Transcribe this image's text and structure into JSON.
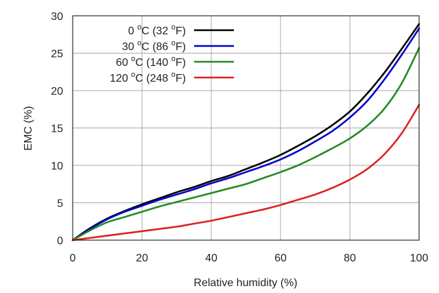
{
  "chart_data": {
    "type": "line",
    "title": "",
    "xlabel": "Relative humidity (%)",
    "ylabel": "EMC (%)",
    "xlim": [
      0,
      100
    ],
    "ylim": [
      0,
      30
    ],
    "xticks": [
      0,
      20,
      40,
      60,
      80,
      100
    ],
    "yticks": [
      0,
      5,
      10,
      15,
      20,
      25,
      30
    ],
    "grid": true,
    "legend_position": "top-left",
    "x": [
      0,
      5,
      10,
      15,
      20,
      25,
      30,
      35,
      40,
      45,
      50,
      55,
      60,
      65,
      70,
      75,
      80,
      85,
      90,
      95,
      100
    ],
    "series": [
      {
        "name": "0 °C (32 °F)",
        "legend": {
          "a": "0 ",
          "sup1": "o",
          "b": "C (32 ",
          "sup2": "o",
          "c": "F)"
        },
        "color": "#000000",
        "values": [
          0,
          1.6,
          2.9,
          3.9,
          4.8,
          5.6,
          6.4,
          7.1,
          7.9,
          8.6,
          9.5,
          10.4,
          11.4,
          12.6,
          13.9,
          15.4,
          17.2,
          19.6,
          22.4,
          25.6,
          28.9
        ]
      },
      {
        "name": "30 °C (86 °F)",
        "legend": {
          "a": "30 ",
          "sup1": "o",
          "b": "C (86 ",
          "sup2": "o",
          "c": "F)"
        },
        "color": "#0000cc",
        "values": [
          0,
          1.5,
          2.8,
          3.8,
          4.6,
          5.4,
          6.1,
          6.8,
          7.6,
          8.3,
          9.1,
          9.9,
          10.8,
          11.9,
          13.2,
          14.6,
          16.4,
          18.6,
          21.5,
          24.8,
          28.3
        ]
      },
      {
        "name": "60 °C (140 °F)",
        "legend": {
          "a": "60 ",
          "sup1": "o",
          "b": "C (140 ",
          "sup2": "o",
          "c": "F)"
        },
        "color": "#228b22",
        "values": [
          0,
          1.3,
          2.4,
          3.1,
          3.8,
          4.5,
          5.1,
          5.7,
          6.3,
          6.9,
          7.5,
          8.3,
          9.1,
          10.0,
          11.1,
          12.3,
          13.6,
          15.3,
          17.6,
          21.0,
          25.7
        ]
      },
      {
        "name": "120 °C (248 °F)",
        "legend": {
          "a": "120 ",
          "sup1": "o",
          "b": "C (248 ",
          "sup2": "o",
          "c": "F)"
        },
        "color": "#dd2222",
        "values": [
          0,
          0.3,
          0.6,
          0.9,
          1.2,
          1.5,
          1.8,
          2.2,
          2.6,
          3.1,
          3.6,
          4.1,
          4.7,
          5.4,
          6.1,
          7.0,
          8.1,
          9.5,
          11.5,
          14.3,
          18.1
        ]
      }
    ]
  }
}
